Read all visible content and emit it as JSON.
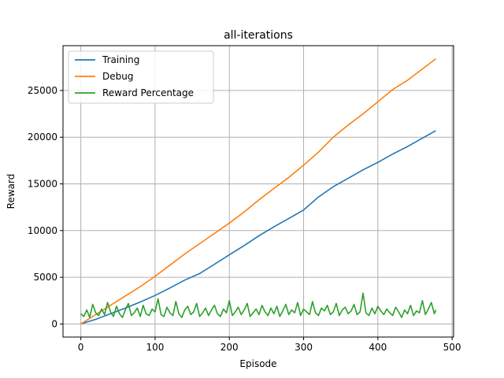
{
  "chart_data": {
    "type": "line",
    "title": "all-iterations",
    "xlabel": "Episode",
    "ylabel": "Reward",
    "xlim": [
      -24,
      502
    ],
    "ylim": [
      -1400,
      29800
    ],
    "xticks": [
      0,
      100,
      200,
      300,
      400,
      500
    ],
    "yticks": [
      0,
      5000,
      10000,
      15000,
      20000,
      25000
    ],
    "grid": true,
    "legend_position": "top-left",
    "series": [
      {
        "name": "Training",
        "color": "#1f77b4",
        "x": [
          0,
          20,
          40,
          60,
          80,
          100,
          120,
          140,
          160,
          180,
          200,
          220,
          240,
          260,
          280,
          300,
          320,
          340,
          360,
          380,
          400,
          420,
          440,
          460,
          478
        ],
        "values": [
          0,
          500,
          1100,
          1700,
          2350,
          3050,
          3850,
          4700,
          5400,
          6400,
          7400,
          8400,
          9450,
          10400,
          11300,
          12200,
          13600,
          14700,
          15600,
          16500,
          17300,
          18200,
          19000,
          19900,
          20700
        ]
      },
      {
        "name": "Debug",
        "color": "#ff7f0e",
        "x": [
          0,
          20,
          40,
          60,
          80,
          100,
          120,
          140,
          160,
          180,
          200,
          220,
          240,
          260,
          280,
          300,
          320,
          340,
          360,
          380,
          400,
          420,
          440,
          460,
          478
        ],
        "values": [
          0,
          1000,
          2000,
          3000,
          4000,
          5100,
          6300,
          7500,
          8600,
          9700,
          10800,
          12000,
          13300,
          14500,
          15700,
          17000,
          18400,
          20000,
          21300,
          22500,
          23800,
          25100,
          26100,
          27300,
          28400
        ]
      },
      {
        "name": "Reward Percentage",
        "color": "#2ca02c",
        "x": [
          0,
          4,
          8,
          12,
          16,
          20,
          24,
          28,
          32,
          36,
          40,
          44,
          48,
          52,
          56,
          60,
          64,
          68,
          72,
          76,
          80,
          84,
          88,
          92,
          96,
          100,
          104,
          108,
          112,
          116,
          120,
          124,
          128,
          132,
          136,
          140,
          144,
          148,
          152,
          156,
          160,
          164,
          168,
          172,
          176,
          180,
          184,
          188,
          192,
          196,
          200,
          204,
          208,
          212,
          216,
          220,
          224,
          228,
          232,
          236,
          240,
          244,
          248,
          252,
          256,
          260,
          264,
          268,
          272,
          276,
          280,
          284,
          288,
          292,
          296,
          300,
          304,
          308,
          312,
          316,
          320,
          324,
          328,
          332,
          336,
          340,
          344,
          348,
          352,
          356,
          360,
          364,
          368,
          372,
          376,
          380,
          384,
          388,
          392,
          396,
          400,
          404,
          408,
          412,
          416,
          420,
          424,
          428,
          432,
          436,
          440,
          444,
          448,
          452,
          456,
          460,
          464,
          468,
          472,
          476,
          478
        ],
        "values": [
          1100,
          800,
          1500,
          700,
          2100,
          1200,
          900,
          1600,
          1000,
          2300,
          1300,
          800,
          1900,
          1100,
          700,
          1500,
          2200,
          900,
          1200,
          1700,
          800,
          2000,
          1100,
          900,
          1600,
          1300,
          2700,
          1000,
          800,
          1800,
          1200,
          900,
          2400,
          1100,
          700,
          1500,
          1900,
          1000,
          1300,
          2200,
          800,
          1200,
          1700,
          900,
          1500,
          2000,
          1100,
          800,
          1600,
          1200,
          2500,
          900,
          1300,
          1800,
          1000,
          1500,
          2200,
          800,
          1200,
          1600,
          1000,
          2000,
          1300,
          900,
          1700,
          1100,
          1900,
          800,
          1400,
          2100,
          1000,
          1500,
          1200,
          2300,
          900,
          1600,
          1300,
          1000,
          2400,
          1200,
          900,
          1700,
          1400,
          2000,
          1000,
          1300,
          2200,
          900,
          1500,
          1800,
          1100,
          1400,
          2100,
          1000,
          1300,
          3300,
          1200,
          900,
          1700,
          1100,
          1900,
          1400,
          1000,
          1600,
          1200,
          900,
          1800,
          1300,
          700,
          1500,
          1100,
          2000,
          900,
          1400,
          1200,
          2500,
          1000,
          1600,
          2300,
          1100,
          1500
        ]
      }
    ]
  }
}
